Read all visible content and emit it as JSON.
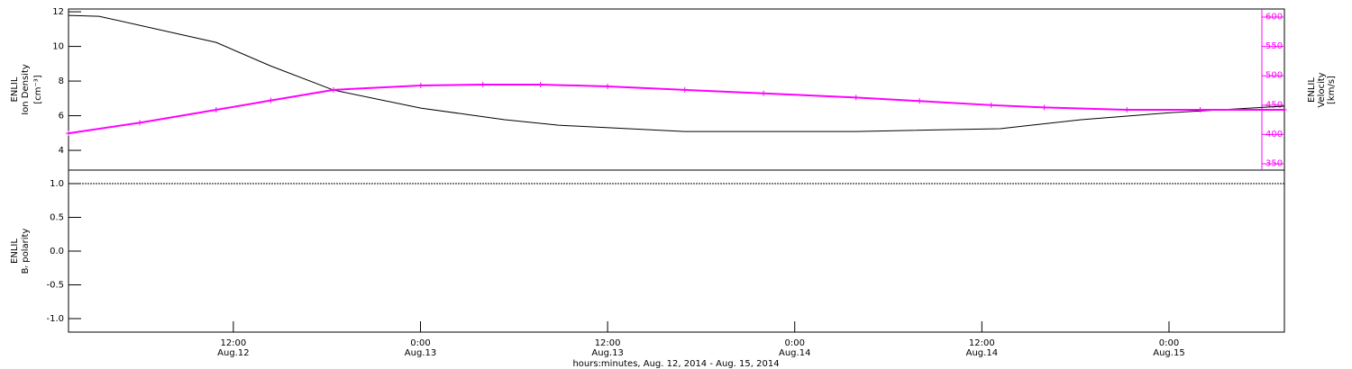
{
  "chart_data": [
    {
      "type": "line",
      "ylabel": [
        "ENLIL",
        "Ion Density",
        "[cm⁻³]"
      ],
      "y2label": [
        "ENLIL",
        "Velocity",
        "[km/s]"
      ],
      "xlim": [
        1.43,
        79.4
      ],
      "ylim": [
        2.86,
        12.16
      ],
      "yticks": [
        4,
        6,
        8,
        10,
        12
      ],
      "y2lim": [
        339.3,
        613.8
      ],
      "y2ticks": [
        350,
        400,
        450,
        500,
        550,
        600
      ],
      "series": [
        {
          "color": "#000000",
          "axis": "y",
          "x": [
            1.43,
            3.39,
            10.9,
            14.37,
            18.42,
            24.02,
            29.4,
            32.86,
            40.95,
            51.93,
            61.17,
            66.37,
            72.15,
            79.37
          ],
          "values": [
            11.79,
            11.74,
            10.23,
            8.88,
            7.48,
            6.44,
            5.77,
            5.45,
            5.09,
            5.09,
            5.25,
            5.77,
            6.18,
            6.55
          ]
        },
        {
          "color": "#ff00ff",
          "axis": "y2",
          "x": [
            1.43,
            6.0,
            10.9,
            14.4,
            18.42,
            24.02,
            28.0,
            31.7,
            36.0,
            40.95,
            46.0,
            51.93,
            56.0,
            60.6,
            64.0,
            69.3,
            74.0,
            79.37
          ],
          "values": [
            402,
            420,
            442,
            458,
            476,
            483.5,
            485,
            485,
            482,
            476,
            470,
            463,
            457,
            450,
            446,
            442,
            442,
            442
          ]
        }
      ]
    },
    {
      "type": "line",
      "ylabel": [
        "ENLIL",
        "Bᵣ polarity"
      ],
      "xlabel": "hours:minutes, Aug. 12, 2014 - Aug. 15, 2014",
      "xlim": [
        1.43,
        79.4
      ],
      "xticks": [
        {
          "value": 12,
          "label": "12:00\nAug.12"
        },
        {
          "value": 24,
          "label": "0:00\nAug.13"
        },
        {
          "value": 36,
          "label": "12:00\nAug.13"
        },
        {
          "value": 48,
          "label": "0:00\nAug.14"
        },
        {
          "value": 60,
          "label": "12:00\nAug.14"
        },
        {
          "value": 72,
          "label": "0:00\nAug.15"
        }
      ],
      "ylim": [
        -1.2,
        1.2
      ],
      "yticks": [
        {
          "value": -1,
          "label": "-1.0"
        },
        -0.5,
        {
          "value": 0,
          "label": "0.0"
        },
        0.5,
        {
          "value": 1,
          "label": "1.0"
        }
      ],
      "series": [
        {
          "color": "#000000",
          "axis": "y",
          "x": [
            1.43,
            79.37
          ],
          "values": [
            1,
            1
          ]
        }
      ]
    }
  ]
}
